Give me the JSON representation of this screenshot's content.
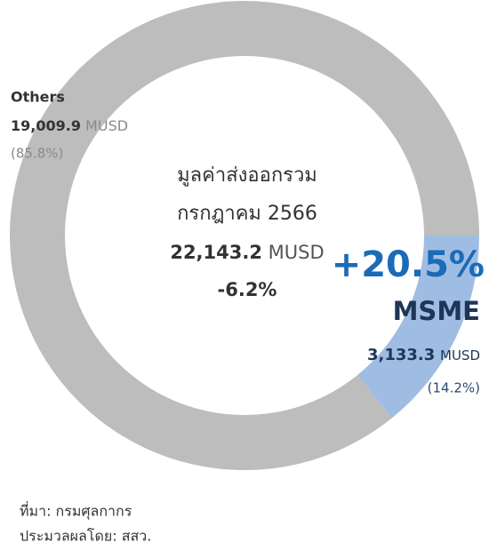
{
  "chart_data": {
    "type": "pie",
    "categories": [
      "MSME",
      "Others"
    ],
    "values": [
      14.2,
      85.8
    ],
    "value_labels": [
      "(14.2%)",
      "(85.8%)"
    ],
    "colors": [
      "#9fbde2",
      "#bdbdbd"
    ],
    "amounts": [
      3133.3,
      19009.9
    ],
    "amount_labels": [
      "3,133.3",
      "19,009.9"
    ],
    "unit": "MUSD",
    "center_title": "มูลค่าส่งออกรวม",
    "center_period": "กรกฎาคม 2566",
    "total": {
      "value": 22143.2,
      "label": "22,143.2"
    },
    "total_change": "-6.2%",
    "msme_change": "+20.5%"
  },
  "footer": {
    "source": "ที่มา: กรมศุลกากร",
    "processed_by": "ประมวลผลโดย: สสว."
  }
}
